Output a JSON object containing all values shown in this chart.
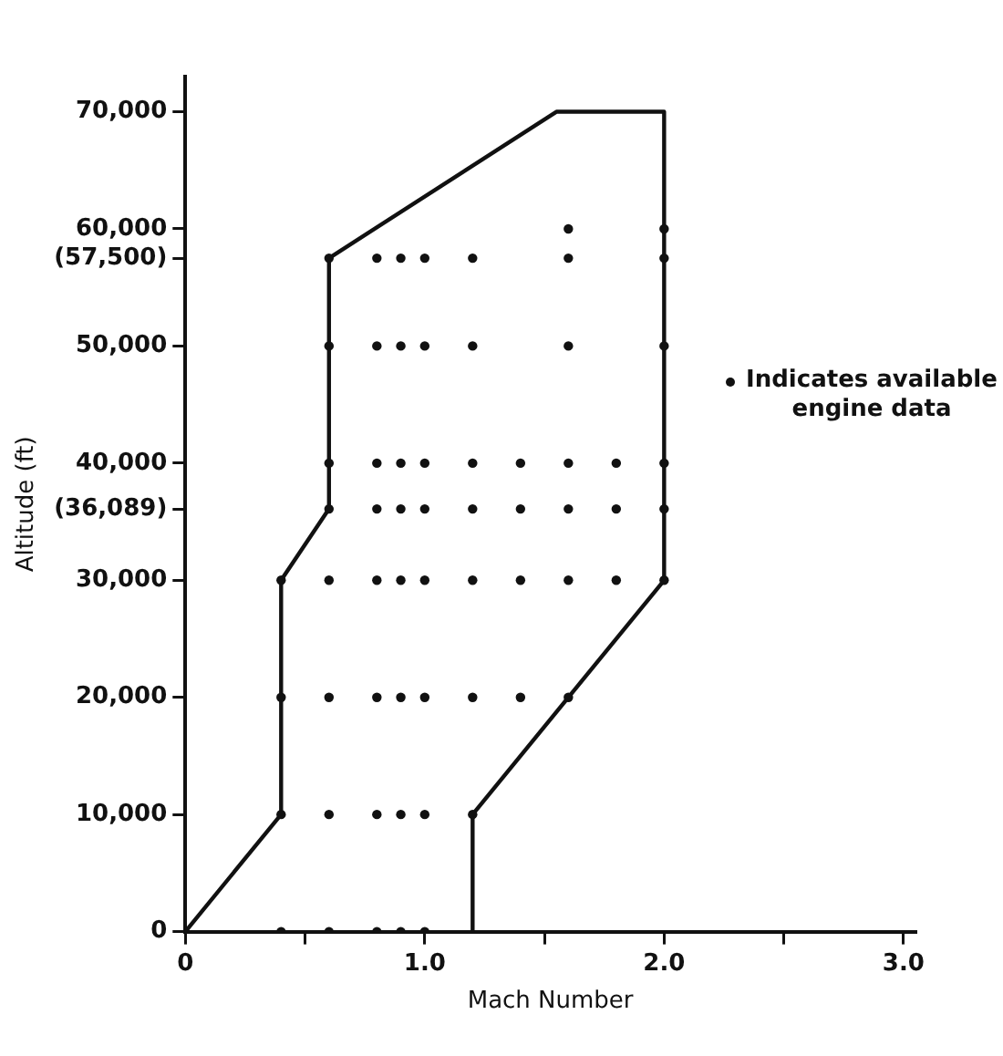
{
  "chart_data": {
    "type": "scatter",
    "xlabel": "Mach Number",
    "ylabel": "Altitude (ft)",
    "xlim": [
      0,
      3.05
    ],
    "ylim": [
      0,
      73000
    ],
    "xticks": [
      0,
      {
        "value": 0.5,
        "label": null
      },
      {
        "value": 1,
        "label": "1.0"
      },
      {
        "value": 1.5,
        "label": null
      },
      {
        "value": 2,
        "label": "2.0"
      },
      {
        "value": 2.5,
        "label": null
      },
      {
        "value": 3,
        "label": "3.0"
      }
    ],
    "yticks": [
      0,
      {
        "value": 10000,
        "label": "10,000"
      },
      {
        "value": 20000,
        "label": "20,000"
      },
      {
        "value": 30000,
        "label": "30,000"
      },
      {
        "value": 36089,
        "label": "(36,089)"
      },
      {
        "value": 40000,
        "label": "40,000"
      },
      {
        "value": 50000,
        "label": "50,000"
      },
      {
        "value": 57500,
        "label": "(57,500)"
      },
      {
        "value": 60000,
        "label": "60,000"
      },
      {
        "value": 70000,
        "label": "70,000"
      }
    ],
    "grid": false,
    "legend": "right",
    "series": [
      {
        "type": "line",
        "color": "#111111",
        "line_style": "solid",
        "marker": "none",
        "x": [
          0,
          0.4,
          0.4,
          0.6,
          0.6,
          1.55,
          2.0,
          2.0,
          1.2,
          1.2
        ],
        "values": [
          0,
          10000,
          30000,
          36089,
          57500,
          70000,
          70000,
          30000,
          10000,
          0
        ]
      },
      {
        "type": "scatter",
        "name": "Indicates available engine data",
        "color": "#111111",
        "marker": "circle",
        "x": [
          0.4,
          0.6,
          0.8,
          0.9,
          1.0,
          0.4,
          0.6,
          0.8,
          0.9,
          1.0,
          1.2,
          0.4,
          0.6,
          0.8,
          0.9,
          1.0,
          1.2,
          1.4,
          1.6,
          0.4,
          0.6,
          0.8,
          0.9,
          1.0,
          1.2,
          1.4,
          1.6,
          1.8,
          2.0,
          0.6,
          0.8,
          0.9,
          1.0,
          1.2,
          1.4,
          1.6,
          1.8,
          2.0,
          0.6,
          0.8,
          0.9,
          1.0,
          1.2,
          1.4,
          1.6,
          1.8,
          2.0,
          0.6,
          0.8,
          0.9,
          1.0,
          1.2,
          1.6,
          2.0,
          0.6,
          0.8,
          0.9,
          1.0,
          1.2,
          1.6,
          2.0,
          1.6,
          2.0
        ],
        "values": [
          0,
          0,
          0,
          0,
          0,
          10000,
          10000,
          10000,
          10000,
          10000,
          10000,
          20000,
          20000,
          20000,
          20000,
          20000,
          20000,
          20000,
          20000,
          30000,
          30000,
          30000,
          30000,
          30000,
          30000,
          30000,
          30000,
          30000,
          30000,
          36089,
          36089,
          36089,
          36089,
          36089,
          36089,
          36089,
          36089,
          36089,
          40000,
          40000,
          40000,
          40000,
          40000,
          40000,
          40000,
          40000,
          40000,
          50000,
          50000,
          50000,
          50000,
          50000,
          50000,
          50000,
          57500,
          57500,
          57500,
          57500,
          57500,
          57500,
          57500,
          60000,
          60000
        ]
      }
    ]
  }
}
